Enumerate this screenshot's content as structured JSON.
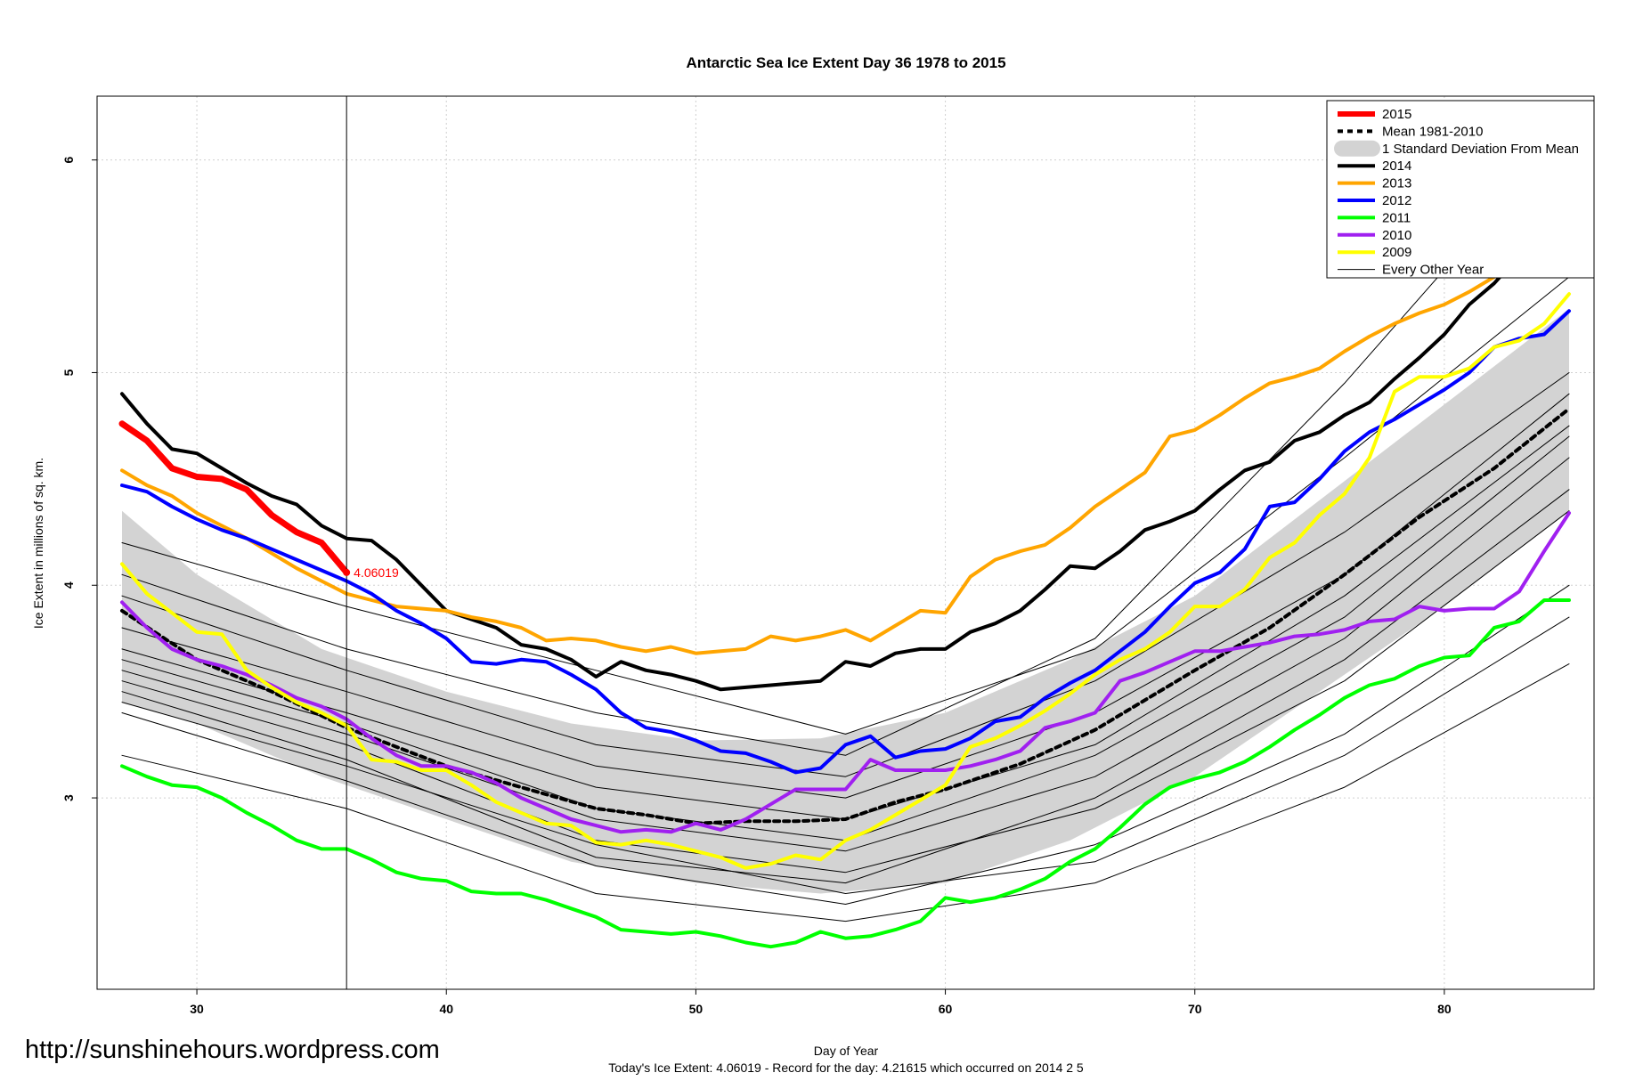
{
  "chart_data": {
    "type": "line",
    "title": "Antarctic Sea Ice Extent Day 36 1978 to 2015",
    "xlabel": "Day of Year",
    "ylabel": "Ice Extent in millions of sq. km.",
    "subtitle": "Today's Ice Extent: 4.06019  - Record for the day: 4.21615 which occurred on 2014 2 5",
    "xlim": [
      26,
      86
    ],
    "ylim": [
      2.1,
      6.3
    ],
    "x_ticks": [
      30,
      40,
      50,
      60,
      70,
      80
    ],
    "y_ticks": [
      3,
      4,
      5,
      6
    ],
    "grid": true,
    "legend_position": "top-right",
    "current_day": 36,
    "annotation": "4.06019",
    "legend": [
      {
        "label": "2015",
        "kind": "line",
        "color": "#ff0000",
        "width": 6,
        "dash": ""
      },
      {
        "label": "Mean 1981-2010",
        "kind": "line",
        "color": "#000000",
        "width": 4,
        "dash": "6,5"
      },
      {
        "label": "1 Standard Deviation From Mean",
        "kind": "band",
        "color": "#d3d3d3",
        "width": 0,
        "dash": ""
      },
      {
        "label": "2014",
        "kind": "line",
        "color": "#000000",
        "width": 4,
        "dash": ""
      },
      {
        "label": "2013",
        "kind": "line",
        "color": "#ffa500",
        "width": 4,
        "dash": ""
      },
      {
        "label": "2012",
        "kind": "line",
        "color": "#0000ff",
        "width": 4,
        "dash": ""
      },
      {
        "label": "2011",
        "kind": "line",
        "color": "#00ff00",
        "width": 4,
        "dash": ""
      },
      {
        "label": "2010",
        "kind": "line",
        "color": "#a020f0",
        "width": 4,
        "dash": ""
      },
      {
        "label": "2009",
        "kind": "line",
        "color": "#ffff00",
        "width": 4,
        "dash": ""
      },
      {
        "label": "Every Other Year",
        "kind": "line",
        "color": "#000000",
        "width": 1,
        "dash": ""
      }
    ],
    "band": {
      "name": "1 Standard Deviation From Mean",
      "x": [
        27,
        30,
        35,
        40,
        45,
        50,
        55,
        60,
        65,
        70,
        75,
        80,
        85
      ],
      "upper": [
        4.35,
        4.05,
        3.7,
        3.5,
        3.35,
        3.27,
        3.28,
        3.4,
        3.65,
        3.95,
        4.4,
        4.85,
        5.3
      ],
      "lower": [
        3.45,
        3.35,
        3.1,
        2.9,
        2.7,
        2.6,
        2.55,
        2.6,
        2.8,
        3.1,
        3.5,
        3.9,
        4.35
      ]
    },
    "series": [
      {
        "name": "2015",
        "color": "#ff0000",
        "width": 7,
        "x": [
          27,
          28,
          29,
          30,
          31,
          32,
          33,
          34,
          35,
          36
        ],
        "y": [
          4.76,
          4.68,
          4.55,
          4.51,
          4.5,
          4.45,
          4.33,
          4.25,
          4.2,
          4.06
        ]
      },
      {
        "name": "Mean 1981-2010",
        "color": "#000000",
        "width": 4,
        "dash": "6,5",
        "x": [
          27,
          30,
          33,
          36,
          40,
          43,
          46,
          48,
          50,
          52,
          54,
          56,
          58,
          60,
          63,
          66,
          70,
          73,
          76,
          79,
          82,
          85
        ],
        "y": [
          3.88,
          3.65,
          3.5,
          3.33,
          3.15,
          3.05,
          2.95,
          2.92,
          2.88,
          2.89,
          2.89,
          2.9,
          2.98,
          3.04,
          3.16,
          3.32,
          3.6,
          3.8,
          4.05,
          4.32,
          4.55,
          4.83
        ]
      },
      {
        "name": "2014",
        "color": "#000000",
        "width": 4,
        "x": [
          27,
          28,
          29,
          30,
          31,
          32,
          33,
          34,
          35,
          36,
          37,
          38,
          39,
          40,
          42,
          43,
          44,
          45,
          46,
          47,
          48,
          49,
          50,
          51,
          52,
          53,
          54,
          55,
          56,
          57,
          58,
          59,
          60,
          61,
          62,
          63,
          64,
          65,
          66,
          67,
          68,
          69,
          70,
          71,
          72,
          73,
          74,
          75,
          76,
          77,
          78,
          79,
          80,
          81,
          82,
          83,
          84,
          85
        ],
        "y": [
          4.9,
          4.76,
          4.64,
          4.62,
          4.55,
          4.48,
          4.42,
          4.38,
          4.28,
          4.22,
          4.21,
          4.12,
          4.0,
          3.88,
          3.8,
          3.72,
          3.7,
          3.65,
          3.57,
          3.64,
          3.6,
          3.58,
          3.55,
          3.51,
          3.52,
          3.53,
          3.54,
          3.55,
          3.64,
          3.62,
          3.68,
          3.7,
          3.7,
          3.78,
          3.82,
          3.88,
          3.98,
          4.09,
          4.08,
          4.16,
          4.26,
          4.3,
          4.35,
          4.45,
          4.54,
          4.58,
          4.68,
          4.72,
          4.8,
          4.86,
          4.97,
          5.07,
          5.18,
          5.32,
          5.42,
          5.55,
          5.67,
          5.84
        ]
      },
      {
        "name": "2013",
        "color": "#ffa500",
        "width": 4,
        "x": [
          27,
          28,
          29,
          30,
          31,
          32,
          33,
          34,
          35,
          36,
          37,
          38,
          39,
          40,
          41,
          42,
          43,
          44,
          45,
          46,
          47,
          48,
          49,
          50,
          51,
          52,
          53,
          54,
          55,
          56,
          57,
          58,
          59,
          60,
          61,
          62,
          63,
          64,
          65,
          66,
          67,
          68,
          69,
          70,
          71,
          72,
          73,
          74,
          75,
          76,
          77,
          78,
          79,
          80,
          81,
          82,
          83,
          84,
          85
        ],
        "y": [
          4.54,
          4.47,
          4.42,
          4.34,
          4.28,
          4.22,
          4.15,
          4.08,
          4.02,
          3.96,
          3.93,
          3.9,
          3.89,
          3.88,
          3.85,
          3.83,
          3.8,
          3.74,
          3.75,
          3.74,
          3.71,
          3.69,
          3.71,
          3.68,
          3.69,
          3.7,
          3.76,
          3.74,
          3.76,
          3.79,
          3.74,
          3.81,
          3.88,
          3.87,
          4.04,
          4.12,
          4.16,
          4.19,
          4.27,
          4.37,
          4.45,
          4.53,
          4.7,
          4.73,
          4.8,
          4.88,
          4.95,
          4.98,
          5.02,
          5.1,
          5.17,
          5.23,
          5.28,
          5.32,
          5.38,
          5.45,
          5.55,
          5.65,
          5.71
        ]
      },
      {
        "name": "2012",
        "color": "#0000ff",
        "width": 4,
        "x": [
          27,
          28,
          29,
          30,
          31,
          32,
          33,
          34,
          35,
          36,
          37,
          38,
          39,
          40,
          41,
          42,
          43,
          44,
          45,
          46,
          47,
          48,
          49,
          50,
          51,
          52,
          53,
          54,
          55,
          56,
          57,
          58,
          59,
          60,
          61,
          62,
          63,
          64,
          65,
          66,
          67,
          68,
          69,
          70,
          71,
          72,
          73,
          74,
          75,
          76,
          77,
          78,
          79,
          80,
          81,
          82,
          83,
          84,
          85
        ],
        "y": [
          4.47,
          4.44,
          4.37,
          4.31,
          4.26,
          4.22,
          4.17,
          4.12,
          4.07,
          4.02,
          3.96,
          3.88,
          3.82,
          3.75,
          3.64,
          3.63,
          3.65,
          3.64,
          3.58,
          3.51,
          3.4,
          3.33,
          3.31,
          3.27,
          3.22,
          3.21,
          3.17,
          3.12,
          3.14,
          3.25,
          3.29,
          3.19,
          3.22,
          3.23,
          3.28,
          3.36,
          3.38,
          3.47,
          3.54,
          3.6,
          3.69,
          3.78,
          3.9,
          4.01,
          4.06,
          4.17,
          4.37,
          4.39,
          4.5,
          4.63,
          4.72,
          4.78,
          4.85,
          4.92,
          5.0,
          5.12,
          5.16,
          5.18,
          5.29
        ]
      },
      {
        "name": "2011",
        "color": "#00ff00",
        "width": 4,
        "x": [
          27,
          28,
          29,
          30,
          31,
          32,
          33,
          34,
          35,
          36,
          37,
          38,
          39,
          40,
          41,
          42,
          43,
          44,
          45,
          46,
          47,
          48,
          49,
          50,
          51,
          52,
          53,
          54,
          55,
          56,
          57,
          58,
          59,
          60,
          61,
          62,
          63,
          64,
          65,
          66,
          67,
          68,
          69,
          70,
          71,
          72,
          73,
          74,
          75,
          76,
          77,
          78,
          79,
          80,
          81,
          82,
          83,
          84,
          85
        ],
        "y": [
          3.15,
          3.1,
          3.06,
          3.05,
          3.0,
          2.93,
          2.87,
          2.8,
          2.76,
          2.76,
          2.71,
          2.65,
          2.62,
          2.61,
          2.56,
          2.55,
          2.55,
          2.52,
          2.48,
          2.44,
          2.38,
          2.37,
          2.36,
          2.37,
          2.35,
          2.32,
          2.3,
          2.32,
          2.37,
          2.34,
          2.35,
          2.38,
          2.42,
          2.53,
          2.51,
          2.53,
          2.57,
          2.62,
          2.7,
          2.76,
          2.86,
          2.97,
          3.05,
          3.09,
          3.12,
          3.17,
          3.24,
          3.32,
          3.39,
          3.47,
          3.53,
          3.56,
          3.62,
          3.66,
          3.67,
          3.8,
          3.83,
          3.93,
          3.93
        ]
      },
      {
        "name": "2010",
        "color": "#a020f0",
        "width": 4,
        "x": [
          27,
          28,
          29,
          30,
          31,
          32,
          33,
          34,
          35,
          36,
          37,
          38,
          39,
          40,
          41,
          42,
          43,
          44,
          45,
          46,
          47,
          48,
          49,
          50,
          51,
          52,
          53,
          54,
          55,
          56,
          57,
          58,
          59,
          60,
          61,
          62,
          63,
          64,
          65,
          66,
          67,
          68,
          69,
          70,
          71,
          72,
          73,
          74,
          75,
          76,
          77,
          78,
          79,
          80,
          81,
          82,
          83,
          84,
          85
        ],
        "y": [
          3.92,
          3.8,
          3.7,
          3.65,
          3.62,
          3.58,
          3.53,
          3.47,
          3.43,
          3.37,
          3.28,
          3.2,
          3.15,
          3.15,
          3.12,
          3.07,
          3.0,
          2.95,
          2.9,
          2.87,
          2.84,
          2.85,
          2.84,
          2.88,
          2.85,
          2.9,
          2.97,
          3.04,
          3.04,
          3.04,
          3.18,
          3.13,
          3.13,
          3.13,
          3.15,
          3.18,
          3.22,
          3.33,
          3.36,
          3.4,
          3.55,
          3.59,
          3.64,
          3.69,
          3.69,
          3.71,
          3.73,
          3.76,
          3.77,
          3.79,
          3.83,
          3.84,
          3.9,
          3.88,
          3.89,
          3.89,
          3.97,
          4.16,
          4.34
        ]
      },
      {
        "name": "2009",
        "color": "#ffff00",
        "width": 4,
        "x": [
          27,
          28,
          29,
          30,
          31,
          32,
          33,
          34,
          35,
          36,
          37,
          38,
          39,
          40,
          41,
          42,
          43,
          44,
          45,
          46,
          47,
          48,
          49,
          50,
          51,
          52,
          53,
          54,
          55,
          56,
          57,
          58,
          59,
          60,
          61,
          62,
          63,
          64,
          65,
          66,
          67,
          68,
          69,
          70,
          71,
          72,
          73,
          74,
          75,
          76,
          77,
          78,
          79,
          80,
          81,
          82,
          83,
          84,
          85
        ],
        "y": [
          4.1,
          3.96,
          3.87,
          3.78,
          3.77,
          3.6,
          3.52,
          3.45,
          3.4,
          3.34,
          3.18,
          3.17,
          3.13,
          3.13,
          3.06,
          2.98,
          2.93,
          2.88,
          2.87,
          2.79,
          2.78,
          2.8,
          2.78,
          2.75,
          2.72,
          2.67,
          2.69,
          2.73,
          2.71,
          2.8,
          2.85,
          2.92,
          2.99,
          3.06,
          3.24,
          3.28,
          3.34,
          3.41,
          3.49,
          3.58,
          3.65,
          3.7,
          3.78,
          3.9,
          3.9,
          3.98,
          4.13,
          4.2,
          4.33,
          4.43,
          4.6,
          4.91,
          4.98,
          4.98,
          5.02,
          5.12,
          5.15,
          5.23,
          5.37
        ]
      },
      {
        "name": "Every Other Year",
        "color": "#000000",
        "width": 1,
        "x": [
          27,
          36,
          46,
          56,
          66,
          76,
          85
        ],
        "y": [
          3.5,
          3.18,
          2.72,
          2.6,
          3.0,
          3.65,
          4.45
        ]
      },
      {
        "name": "Every Other Year",
        "color": "#000000",
        "width": 1,
        "x": [
          27,
          36,
          46,
          56,
          66,
          76,
          85
        ],
        "y": [
          3.7,
          3.4,
          3.05,
          2.9,
          3.25,
          3.95,
          4.75
        ]
      },
      {
        "name": "Every Other Year",
        "color": "#000000",
        "width": 1,
        "x": [
          27,
          36,
          46,
          56,
          66,
          76,
          85
        ],
        "y": [
          3.95,
          3.6,
          3.25,
          3.1,
          3.55,
          4.25,
          5.0
        ]
      },
      {
        "name": "Every Other Year",
        "color": "#000000",
        "width": 1,
        "x": [
          27,
          36,
          46,
          56,
          66,
          76,
          85
        ],
        "y": [
          3.4,
          3.08,
          2.68,
          2.5,
          2.78,
          3.3,
          4.0
        ]
      },
      {
        "name": "Every Other Year",
        "color": "#000000",
        "width": 1,
        "x": [
          27,
          36,
          46,
          56,
          66,
          76,
          85
        ],
        "y": [
          4.2,
          3.9,
          3.6,
          3.3,
          3.7,
          4.6,
          5.45
        ]
      },
      {
        "name": "Every Other Year",
        "color": "#000000",
        "width": 1,
        "x": [
          27,
          36,
          46,
          56,
          66,
          76,
          85
        ],
        "y": [
          3.6,
          3.3,
          2.9,
          2.75,
          3.1,
          3.75,
          4.6
        ]
      },
      {
        "name": "Every Other Year",
        "color": "#000000",
        "width": 1,
        "x": [
          27,
          36,
          46,
          56,
          66,
          76,
          85
        ],
        "y": [
          3.2,
          2.95,
          2.55,
          2.42,
          2.6,
          3.05,
          3.63
        ]
      },
      {
        "name": "Every Other Year",
        "color": "#000000",
        "width": 1,
        "x": [
          27,
          36,
          46,
          56,
          66,
          76,
          85
        ],
        "y": [
          3.55,
          3.25,
          2.8,
          2.65,
          2.95,
          3.55,
          4.35
        ]
      },
      {
        "name": "Every Other Year",
        "color": "#000000",
        "width": 1,
        "x": [
          27,
          36,
          46,
          56,
          66,
          76,
          85
        ],
        "y": [
          3.8,
          3.5,
          3.15,
          3.0,
          3.4,
          4.05,
          4.9
        ]
      },
      {
        "name": "Every Other Year",
        "color": "#000000",
        "width": 1,
        "x": [
          27,
          36,
          46,
          56,
          66,
          76,
          85
        ],
        "y": [
          4.05,
          3.7,
          3.4,
          3.2,
          3.75,
          4.95,
          6.15
        ]
      },
      {
        "name": "Every Other Year",
        "color": "#000000",
        "width": 1,
        "x": [
          27,
          36,
          46,
          56,
          66,
          76,
          85
        ],
        "y": [
          3.45,
          3.15,
          2.78,
          2.55,
          2.7,
          3.2,
          3.85
        ]
      },
      {
        "name": "Every Other Year",
        "color": "#000000",
        "width": 1,
        "x": [
          27,
          36,
          46,
          56,
          66,
          76,
          85
        ],
        "y": [
          3.65,
          3.35,
          2.95,
          2.8,
          3.2,
          3.85,
          4.7
        ]
      }
    ]
  },
  "watermark": "http://sunshinehours.wordpress.com"
}
